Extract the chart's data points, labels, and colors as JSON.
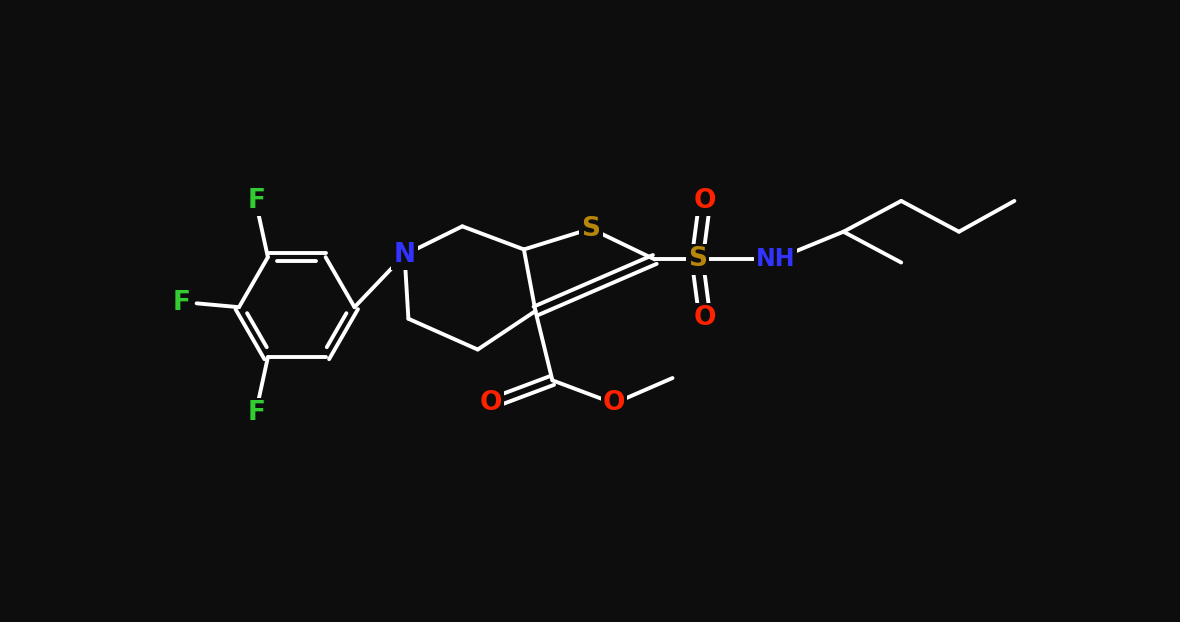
{
  "background": "#0d0d0d",
  "bond_color": "#ffffff",
  "lw": 2.8,
  "figsize": [
    11.8,
    6.22
  ],
  "dpi": 100,
  "colors": {
    "F": "#33cc33",
    "N": "#3333ff",
    "O": "#ff2200",
    "S": "#b8860b",
    "NH": "#3333ff"
  },
  "fs": 19,
  "fs_nh": 17
}
